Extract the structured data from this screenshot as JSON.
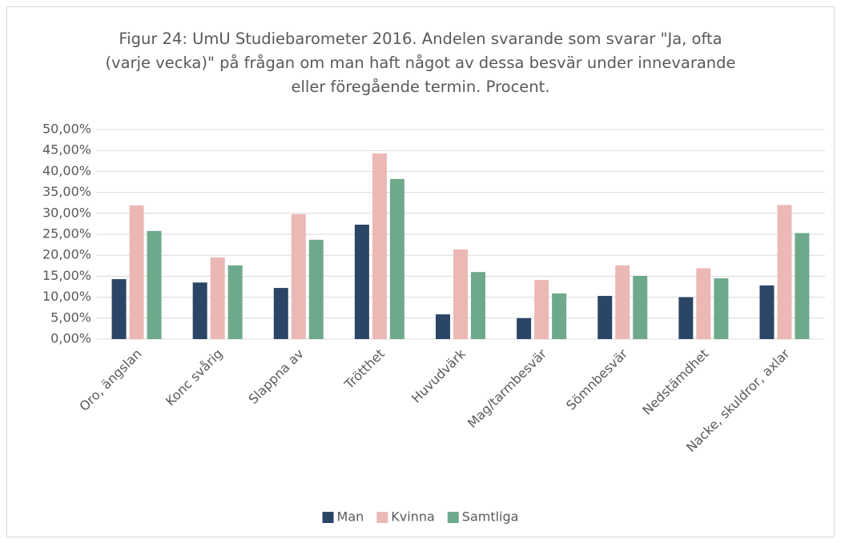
{
  "chart_data": {
    "type": "bar",
    "title": "Figur 24: UmU Studiebarometer 2016. Andelen svarande som svarar \"Ja, ofta (varje vecka)\" på frågan om man haft något av dessa besvär under innevarande eller föregående termin. Procent.",
    "categories": [
      "Oro, ängslan",
      "Konc svårig",
      "Slappna av",
      "Trötthet",
      "Huvudvärk",
      "Mag/tarmbesvär",
      "Sömnbesvär",
      "Nedstämdhet",
      "Nacke, skuldror, axlar"
    ],
    "series": [
      {
        "name": "Man",
        "color": "#2b4566",
        "values": [
          14.3,
          13.5,
          12.2,
          27.3,
          5.9,
          5.0,
          10.3,
          10.0,
          12.8
        ]
      },
      {
        "name": "Kvinna",
        "color": "#ebb8b6",
        "values": [
          31.9,
          19.5,
          29.8,
          44.3,
          21.4,
          14.1,
          17.6,
          16.9,
          32.0
        ]
      },
      {
        "name": "Samtliga",
        "color": "#6fa98b",
        "values": [
          25.8,
          17.6,
          23.7,
          38.2,
          16.0,
          10.9,
          15.1,
          14.5,
          25.3
        ]
      }
    ],
    "ylim": [
      0,
      50
    ],
    "yticks": [
      {
        "value": 0,
        "label": "0,00%"
      },
      {
        "value": 5,
        "label": "5,00%"
      },
      {
        "value": 10,
        "label": "10,00%"
      },
      {
        "value": 15,
        "label": "15,00%"
      },
      {
        "value": 20,
        "label": "20,00%"
      },
      {
        "value": 25,
        "label": "25,00%"
      },
      {
        "value": 30,
        "label": "30,00%"
      },
      {
        "value": 35,
        "label": "35,00%"
      },
      {
        "value": 40,
        "label": "40,00%"
      },
      {
        "value": 45,
        "label": "45,00%"
      },
      {
        "value": 50,
        "label": "50,00%"
      }
    ],
    "grid": true,
    "legend": "bottom"
  }
}
